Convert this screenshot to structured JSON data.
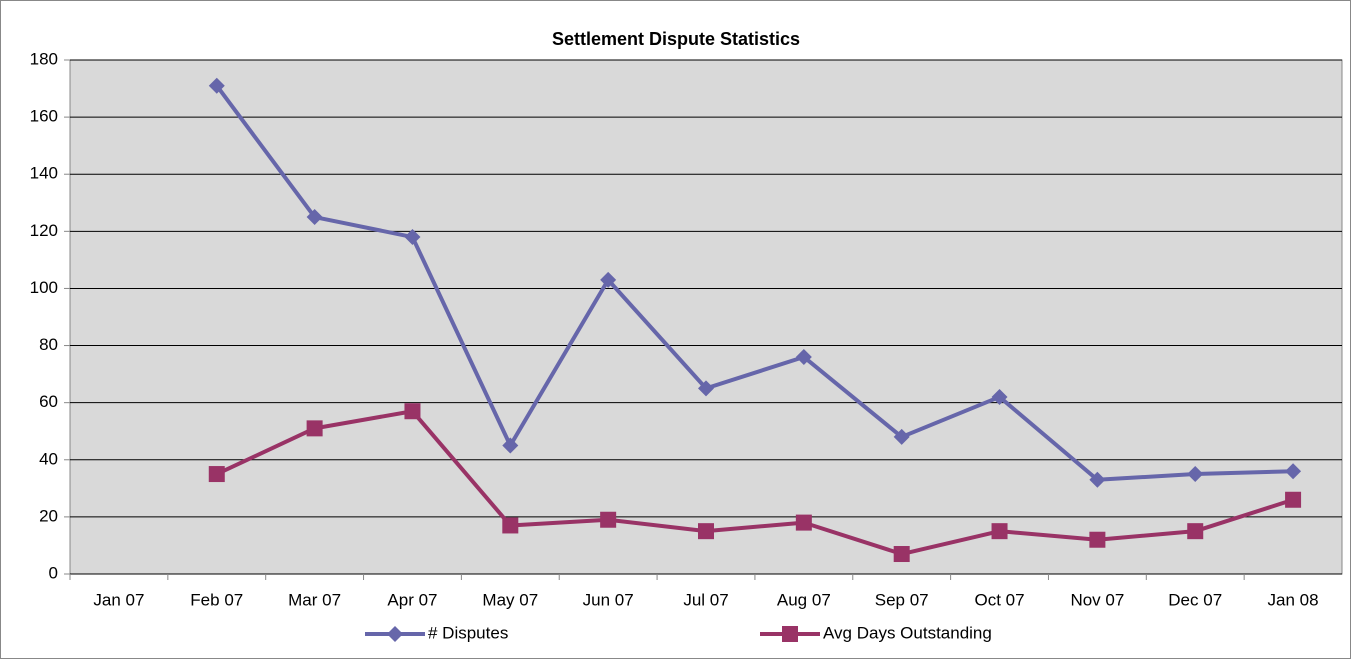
{
  "chart_data": {
    "type": "line",
    "title": "Settlement Dispute Statistics",
    "categories": [
      "Jan 07",
      "Feb 07",
      "Mar 07",
      "Apr 07",
      "May 07",
      "Jun 07",
      "Jul 07",
      "Aug 07",
      "Sep 07",
      "Oct 07",
      "Nov 07",
      "Dec 07",
      "Jan 08"
    ],
    "series": [
      {
        "name": "# Disputes",
        "color": "#6666aa",
        "marker": "diamond",
        "values": [
          null,
          171,
          125,
          118,
          45,
          103,
          65,
          76,
          48,
          62,
          33,
          35,
          36
        ]
      },
      {
        "name": "Avg Days Outstanding",
        "color": "#993366",
        "marker": "square",
        "values": [
          null,
          35,
          51,
          57,
          17,
          19,
          15,
          18,
          7,
          15,
          12,
          15,
          26
        ]
      }
    ],
    "ylim": [
      0,
      180
    ],
    "yticks": [
      0,
      20,
      40,
      60,
      80,
      100,
      120,
      140,
      160,
      180
    ],
    "grid": true,
    "legend": "bottom"
  }
}
